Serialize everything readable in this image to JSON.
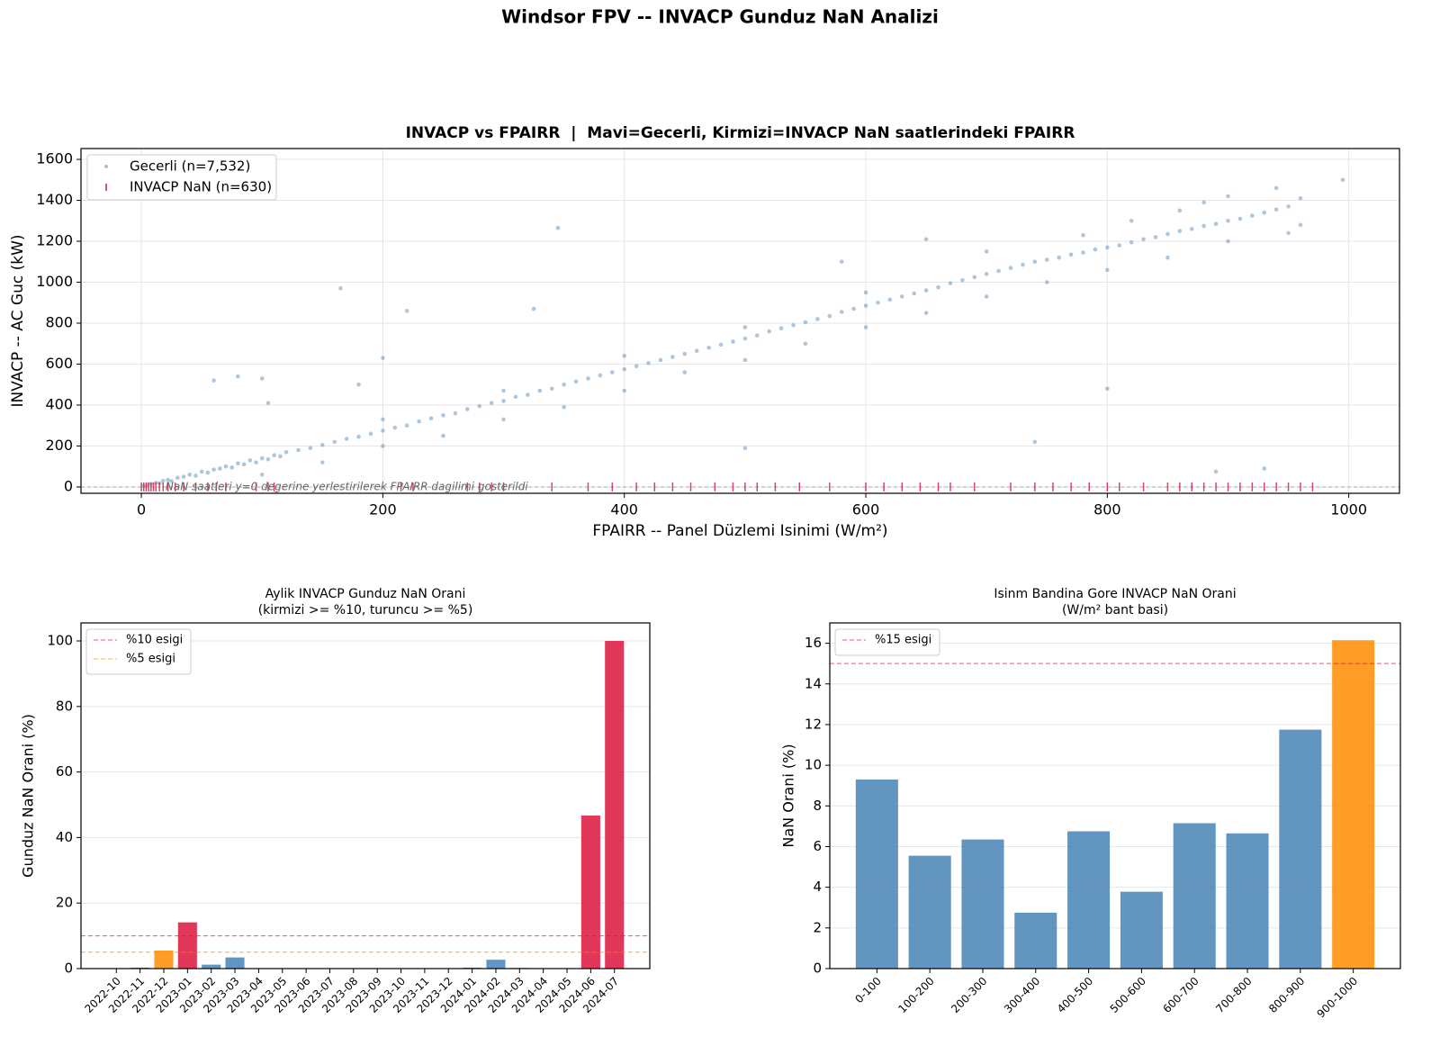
{
  "title": "Windsor FPV -- INVACP Gunduz NaN Analizi",
  "chart_data": [
    {
      "type": "scatter",
      "title": "INVACP vs FPAIRR  |  Mavi=Gecerli, Kirmizi=INVACP NaN saatlerindeki FPAIRR",
      "xlabel": "FPAIRR -- Panel Düzlemi Isinimi (W/m²)",
      "ylabel": "INVACP -- AC Guc (kW)",
      "xlim": [
        -50,
        1042
      ],
      "ylim": [
        -31,
        1653
      ],
      "xticks": [
        0,
        200,
        400,
        600,
        800,
        1000
      ],
      "yticks": [
        0,
        200,
        400,
        600,
        800,
        1000,
        1200,
        1400,
        1600
      ],
      "grid": true,
      "legend": "upper left",
      "annotation": "NaN saatleri y=0 degerine yerlestirilerek FPAIRR dagilimi gosterildi",
      "hlines": [
        {
          "value": 0,
          "color": "#aaaaaa"
        }
      ],
      "series": [
        {
          "name": "Gecerli (n=7,532)",
          "color": "#4682b4",
          "marker": "circle",
          "x": [
            2,
            5,
            8,
            12,
            15,
            18,
            22,
            25,
            30,
            35,
            40,
            45,
            50,
            55,
            60,
            65,
            70,
            75,
            80,
            85,
            90,
            95,
            100,
            105,
            110,
            115,
            120,
            130,
            140,
            150,
            160,
            170,
            180,
            190,
            200,
            210,
            220,
            230,
            240,
            250,
            260,
            270,
            280,
            290,
            300,
            310,
            320,
            330,
            340,
            350,
            360,
            370,
            380,
            390,
            400,
            410,
            420,
            430,
            440,
            450,
            460,
            470,
            480,
            490,
            500,
            510,
            520,
            530,
            540,
            550,
            560,
            570,
            580,
            590,
            600,
            610,
            620,
            630,
            640,
            650,
            660,
            670,
            680,
            690,
            700,
            710,
            720,
            730,
            740,
            750,
            760,
            770,
            780,
            790,
            800,
            810,
            820,
            830,
            840,
            850,
            860,
            870,
            880,
            890,
            900,
            910,
            920,
            930,
            940,
            950,
            100,
            150,
            200,
            250,
            300,
            350,
            400,
            450,
            500,
            550,
            600,
            650,
            700,
            750,
            800,
            850,
            900,
            950,
            960,
            820,
            860,
            900,
            940,
            960,
            880,
            780,
            700,
            600,
            500,
            400,
            300,
            200,
            345,
            165,
            220,
            80,
            100,
            60,
            180,
            325,
            500,
            740,
            800,
            890,
            930,
            200,
            580,
            650,
            995,
            105
          ],
          "y": [
            5,
            10,
            15,
            20,
            18,
            30,
            35,
            28,
            45,
            50,
            60,
            55,
            75,
            70,
            85,
            90,
            100,
            95,
            115,
            110,
            130,
            120,
            140,
            135,
            155,
            150,
            170,
            180,
            190,
            205,
            220,
            235,
            245,
            260,
            275,
            290,
            300,
            320,
            335,
            350,
            360,
            380,
            395,
            410,
            420,
            440,
            450,
            470,
            480,
            500,
            515,
            530,
            545,
            560,
            575,
            590,
            605,
            620,
            635,
            650,
            665,
            680,
            695,
            710,
            725,
            740,
            760,
            775,
            790,
            805,
            820,
            835,
            855,
            870,
            885,
            900,
            915,
            930,
            945,
            960,
            975,
            995,
            1010,
            1025,
            1040,
            1055,
            1070,
            1085,
            1100,
            1110,
            1120,
            1135,
            1145,
            1160,
            1170,
            1180,
            1195,
            1210,
            1220,
            1235,
            1250,
            1260,
            1275,
            1285,
            1300,
            1310,
            1325,
            1340,
            1355,
            1370,
            60,
            120,
            200,
            250,
            330,
            390,
            470,
            560,
            620,
            700,
            780,
            850,
            930,
            1000,
            1060,
            1120,
            1200,
            1240,
            1280,
            1300,
            1350,
            1420,
            1460,
            1410,
            1390,
            1230,
            1150,
            950,
            780,
            640,
            470,
            330,
            1265,
            970,
            860,
            540,
            530,
            520,
            500,
            870,
            190,
            220,
            480,
            75,
            90,
            630,
            1100,
            1210,
            1500,
            410
          ]
        },
        {
          "name": "INVACP NaN (n=630)",
          "color": "#dc143c",
          "marker": "vline",
          "x": [
            0,
            2,
            4,
            6,
            8,
            10,
            12,
            15,
            18,
            22,
            28,
            35,
            45,
            55,
            62,
            70,
            95,
            105,
            110,
            215,
            225,
            270,
            280,
            290,
            300,
            340,
            370,
            390,
            410,
            425,
            440,
            455,
            475,
            490,
            500,
            510,
            525,
            545,
            570,
            600,
            615,
            630,
            645,
            660,
            670,
            690,
            720,
            740,
            755,
            770,
            785,
            800,
            810,
            830,
            850,
            860,
            870,
            880,
            890,
            900,
            910,
            920,
            930,
            940,
            950,
            960,
            970
          ],
          "y": [
            0,
            0,
            0,
            0,
            0,
            0,
            0,
            0,
            0,
            0,
            0,
            0,
            0,
            0,
            0,
            0,
            0,
            0,
            0,
            0,
            0,
            0,
            0,
            0,
            0,
            0,
            0,
            0,
            0,
            0,
            0,
            0,
            0,
            0,
            0,
            0,
            0,
            0,
            0,
            0,
            0,
            0,
            0,
            0,
            0,
            0,
            0,
            0,
            0,
            0,
            0,
            0,
            0,
            0,
            0,
            0,
            0,
            0,
            0,
            0,
            0,
            0,
            0,
            0,
            0,
            0,
            0
          ]
        }
      ]
    },
    {
      "type": "bar",
      "title": [
        "Aylik INVACP Gunduz NaN Orani",
        "(kirmizi >= %10, turuncu >= %5)"
      ],
      "ylabel": "Gunduz NaN Orani (%)",
      "categories": [
        "2022-10",
        "2022-11",
        "2022-12",
        "2023-01",
        "2023-02",
        "2023-03",
        "2023-04",
        "2023-05",
        "2023-06",
        "2023-07",
        "2023-08",
        "2023-09",
        "2023-10",
        "2023-11",
        "2023-12",
        "2024-01",
        "2024-02",
        "2024-03",
        "2024-04",
        "2024-05",
        "2024-06",
        "2024-07"
      ],
      "values": [
        0,
        0.3,
        5.5,
        14.1,
        1.2,
        3.4,
        0,
        0,
        0,
        0,
        0,
        0,
        0,
        0,
        0,
        0.3,
        2.7,
        0.2,
        0,
        0,
        46.7,
        100
      ],
      "colors": [
        "#4682b4",
        "#4682b4",
        "#ff8c00",
        "#dc143c",
        "#4682b4",
        "#4682b4",
        "#4682b4",
        "#4682b4",
        "#4682b4",
        "#4682b4",
        "#4682b4",
        "#4682b4",
        "#4682b4",
        "#4682b4",
        "#4682b4",
        "#4682b4",
        "#4682b4",
        "#4682b4",
        "#4682b4",
        "#4682b4",
        "#dc143c",
        "#dc143c"
      ],
      "ylim": [
        0,
        105.5
      ],
      "yticks": [
        0,
        20,
        40,
        60,
        80,
        100
      ],
      "grid": true,
      "legend": "upper left",
      "hlines": [
        {
          "value": 10,
          "color": "#dc143c",
          "label": "%10 esigi"
        },
        {
          "value": 5,
          "color": "#ff8c00",
          "label": "%5 esigi"
        }
      ]
    },
    {
      "type": "bar",
      "title": [
        "Isinm Bandina Gore INVACP NaN Orani",
        "(W/m² bant basi)"
      ],
      "ylabel": "NaN Orani (%)",
      "categories": [
        "0-100",
        "100-200",
        "200-300",
        "300-400",
        "400-500",
        "500-600",
        "600-700",
        "700-800",
        "800-900",
        "900-1000"
      ],
      "values": [
        9.3,
        5.55,
        6.35,
        2.75,
        6.75,
        3.78,
        7.15,
        6.65,
        11.75,
        16.15
      ],
      "colors": [
        "#4682b4",
        "#4682b4",
        "#4682b4",
        "#4682b4",
        "#4682b4",
        "#4682b4",
        "#4682b4",
        "#4682b4",
        "#4682b4",
        "#ff8c00"
      ],
      "ylim": [
        0,
        17
      ],
      "yticks": [
        0,
        2,
        4,
        6,
        8,
        10,
        12,
        14,
        16
      ],
      "grid": true,
      "legend": "upper left",
      "hlines": [
        {
          "value": 15,
          "color": "#dc143c",
          "label": "%15 esigi"
        }
      ]
    }
  ]
}
